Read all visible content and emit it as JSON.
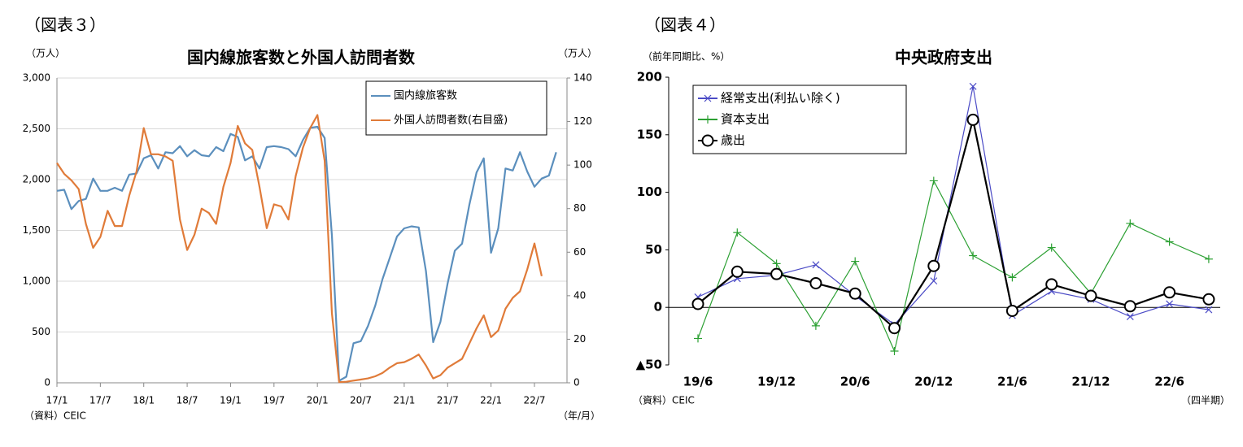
{
  "chart_data": [
    {
      "type": "line",
      "figure_label": "（図表３）",
      "title": "国内線旅客数と外国人訪問者数",
      "ylabel": "（万人）",
      "y2label": "（万人）",
      "xlabel": "（年/月）",
      "source": "（資料）CEIC",
      "categories": [
        "17/1",
        null,
        null,
        null,
        null,
        null,
        "17/7",
        null,
        null,
        null,
        null,
        null,
        "18/1",
        null,
        null,
        null,
        null,
        null,
        "18/7",
        null,
        null,
        null,
        null,
        null,
        "19/1",
        null,
        null,
        null,
        null,
        null,
        "19/7",
        null,
        null,
        null,
        null,
        null,
        "20/1",
        null,
        null,
        null,
        null,
        null,
        "20/7",
        null,
        null,
        null,
        null,
        null,
        "21/1",
        null,
        null,
        null,
        null,
        null,
        "21/7",
        null,
        null,
        null,
        null,
        null,
        "22/1",
        null,
        null,
        null,
        null,
        null,
        "22/7",
        null,
        null,
        null
      ],
      "series": [
        {
          "name": "国内線旅客数",
          "color": "#5b8fbd",
          "values": [
            1890,
            1900,
            1710,
            1790,
            1810,
            2010,
            1890,
            1890,
            1920,
            1890,
            2050,
            2060,
            2210,
            2240,
            2110,
            2270,
            2260,
            2330,
            2230,
            2290,
            2240,
            2230,
            2320,
            2280,
            2450,
            2420,
            2190,
            2230,
            2110,
            2320,
            2330,
            2320,
            2300,
            2230,
            2390,
            2510,
            2520,
            2410,
            1450,
            20,
            60,
            390,
            410,
            560,
            760,
            1020,
            1230,
            1440,
            1520,
            1540,
            1530,
            1100,
            400,
            600,
            980,
            1300,
            1370,
            1750,
            2070,
            2210,
            1280,
            1520,
            2110,
            2090,
            2270,
            2080,
            1930,
            2010,
            2040,
            2270
          ]
        },
        {
          "name": "外国人訪問者数(右目盛)",
          "color": "#e07b39",
          "axis": "y2",
          "values": [
            101,
            96,
            93,
            89,
            73,
            62,
            67,
            79,
            72,
            72,
            86,
            97,
            117,
            105,
            105,
            104,
            102,
            75,
            61,
            68,
            80,
            78,
            73,
            90,
            101,
            118,
            110,
            107,
            90,
            71,
            82,
            81,
            75,
            95,
            108,
            117,
            123,
            102,
            32,
            0.3,
            0.5,
            1,
            1.5,
            2,
            3,
            4.5,
            7,
            9,
            9.5,
            11,
            13,
            8,
            2,
            3.5,
            7,
            9,
            11,
            18,
            25,
            31,
            21,
            24,
            34,
            39,
            42,
            52,
            64,
            49,
            null,
            null
          ]
        }
      ],
      "ylim": [
        0,
        3000
      ],
      "yticks": [
        0,
        500,
        {
          "value": 1000,
          "label": "1,000"
        },
        {
          "value": 1500,
          "label": "1,500"
        },
        {
          "value": 2000,
          "label": "2,000"
        },
        {
          "value": 2500,
          "label": "2,500"
        },
        {
          "value": 3000,
          "label": "3,000"
        }
      ],
      "y2lim": [
        0,
        140
      ],
      "y2ticks": [
        0,
        20,
        40,
        60,
        80,
        100,
        120,
        140
      ],
      "grid": true,
      "legend": "upper right"
    },
    {
      "type": "line",
      "figure_label": "（図表４）",
      "title": "中央政府支出",
      "ylabel": "（前年同期比、%）",
      "xlabel": "（四半期）",
      "source": "（資料）CEIC",
      "categories": [
        "19/6",
        null,
        "19/12",
        null,
        "20/6",
        null,
        "20/12",
        null,
        "21/6",
        null,
        "21/12",
        null,
        "22/6",
        null
      ],
      "series": [
        {
          "name": "経常支出(利払い除く)",
          "color": "#4b4bc6",
          "marker": "x",
          "values": [
            9,
            25,
            28,
            37,
            10,
            -15,
            23,
            192,
            -7,
            14,
            7,
            -8,
            3,
            -2
          ]
        },
        {
          "name": "資本支出",
          "color": "#2ca033",
          "marker": "+",
          "values": [
            -27,
            65,
            38,
            -16,
            40,
            -38,
            110,
            45,
            26,
            52,
            12,
            73,
            57,
            42
          ]
        },
        {
          "name": "歳出",
          "color": "#000000",
          "marker": "o",
          "values": [
            3,
            31,
            29,
            21,
            12,
            -18,
            36,
            163,
            -3,
            20,
            10,
            1,
            13,
            7
          ]
        }
      ],
      "ylim": [
        -50,
        200
      ],
      "yticks": [
        {
          "value": -50,
          "label": "▲50"
        },
        0,
        50,
        100,
        150,
        200
      ],
      "grid": false,
      "legend": "upper left"
    }
  ]
}
